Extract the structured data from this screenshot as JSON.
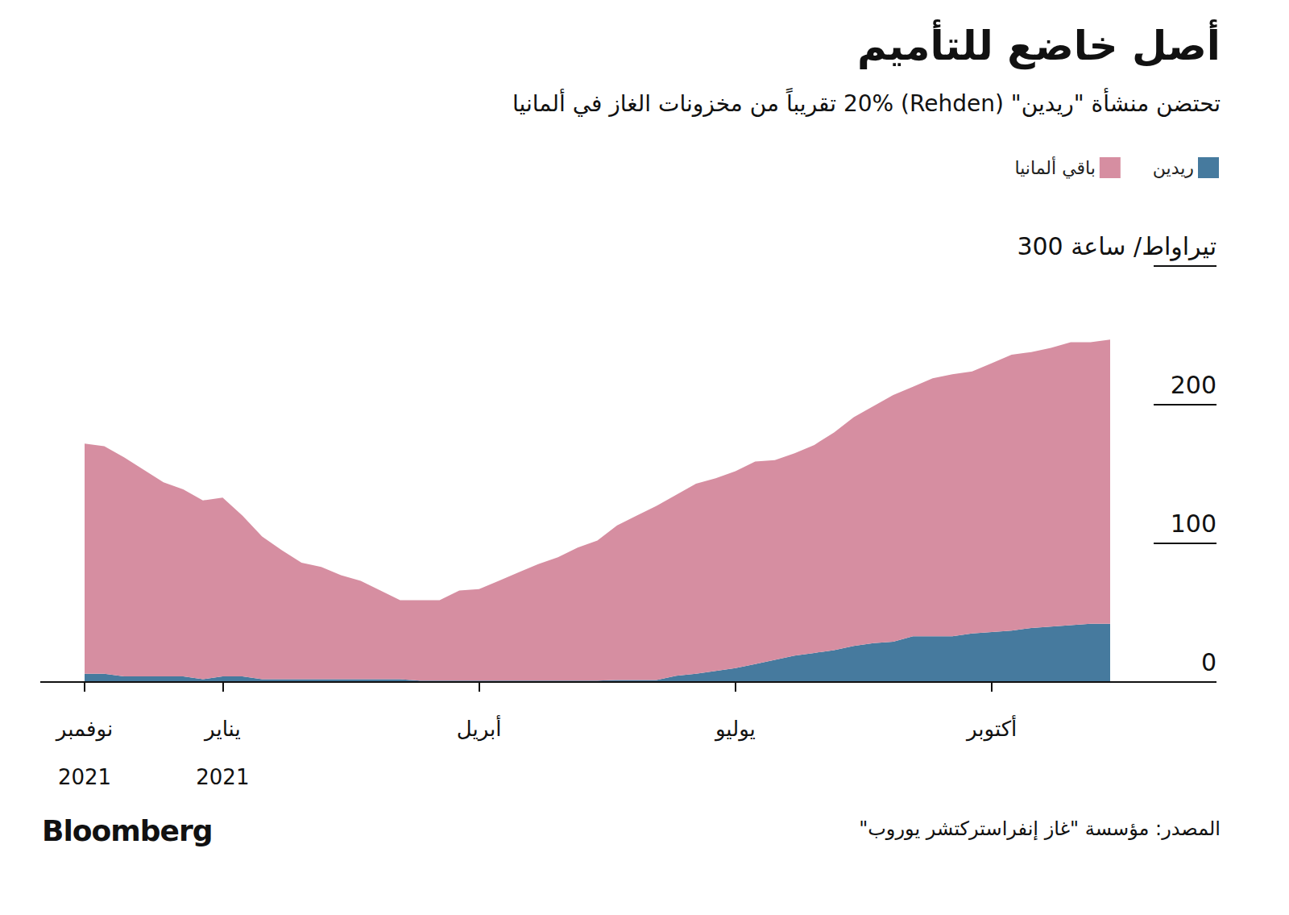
{
  "chart_data": {
    "type": "area",
    "title": "أصل خاضع للتأميم",
    "subtitle": "تحتضن منشأة \"ريدين\" (Rehden) 20% تقريباً من مخزونات الغاز في ألمانيا",
    "source": "المصدر: مؤسسة \"غاز إنفراستركتشر يوروب\"",
    "credit": "Bloomberg",
    "categories": [
      "نوفمبر\n2021",
      null,
      null,
      null,
      null,
      null,
      null,
      "يناير\n2021",
      null,
      null,
      null,
      null,
      null,
      null,
      null,
      null,
      null,
      null,
      null,
      null,
      "أبريل",
      null,
      null,
      null,
      null,
      null,
      null,
      null,
      null,
      null,
      null,
      null,
      null,
      "يوليو",
      null,
      null,
      null,
      null,
      null,
      null,
      null,
      null,
      null,
      null,
      null,
      null,
      "أكتوبر",
      null,
      null,
      null,
      null,
      null,
      null
    ],
    "series": [
      {
        "name": "ريدين",
        "color": "#467a9e",
        "values": [
          6,
          6,
          4,
          4,
          4,
          4,
          2,
          4,
          4,
          2,
          2,
          2,
          2,
          2,
          2,
          2,
          2,
          1,
          1,
          1,
          1,
          1,
          1,
          1,
          1,
          1,
          1,
          1.5,
          1.5,
          1.5,
          4.5,
          6,
          8,
          10,
          13,
          16,
          19,
          21,
          23,
          26,
          28,
          29,
          33,
          33,
          33,
          35,
          36,
          37,
          39,
          40,
          41,
          42,
          42
        ]
      },
      {
        "name": "باقي ألمانيا",
        "color": "#d68ea1",
        "values": [
          166,
          164,
          158,
          149,
          140,
          135,
          129,
          129,
          116,
          103,
          93,
          84,
          81,
          75,
          71,
          64,
          57,
          58,
          58,
          65,
          66,
          72,
          78,
          84,
          89,
          96,
          101,
          111.5,
          118.5,
          125.5,
          130.5,
          137,
          139,
          142,
          146,
          144,
          146,
          150,
          157,
          165,
          171,
          178,
          180,
          186,
          189,
          189,
          194,
          199,
          199,
          201,
          204,
          203,
          205
        ]
      }
    ],
    "ylim": [
      0,
      300
    ],
    "yticks": [
      0,
      100,
      200,
      {
        "value": 300,
        "label": "300 تيراواط/ ساعة"
      }
    ],
    "stacked": true,
    "grid": false,
    "legend": "top-right"
  }
}
